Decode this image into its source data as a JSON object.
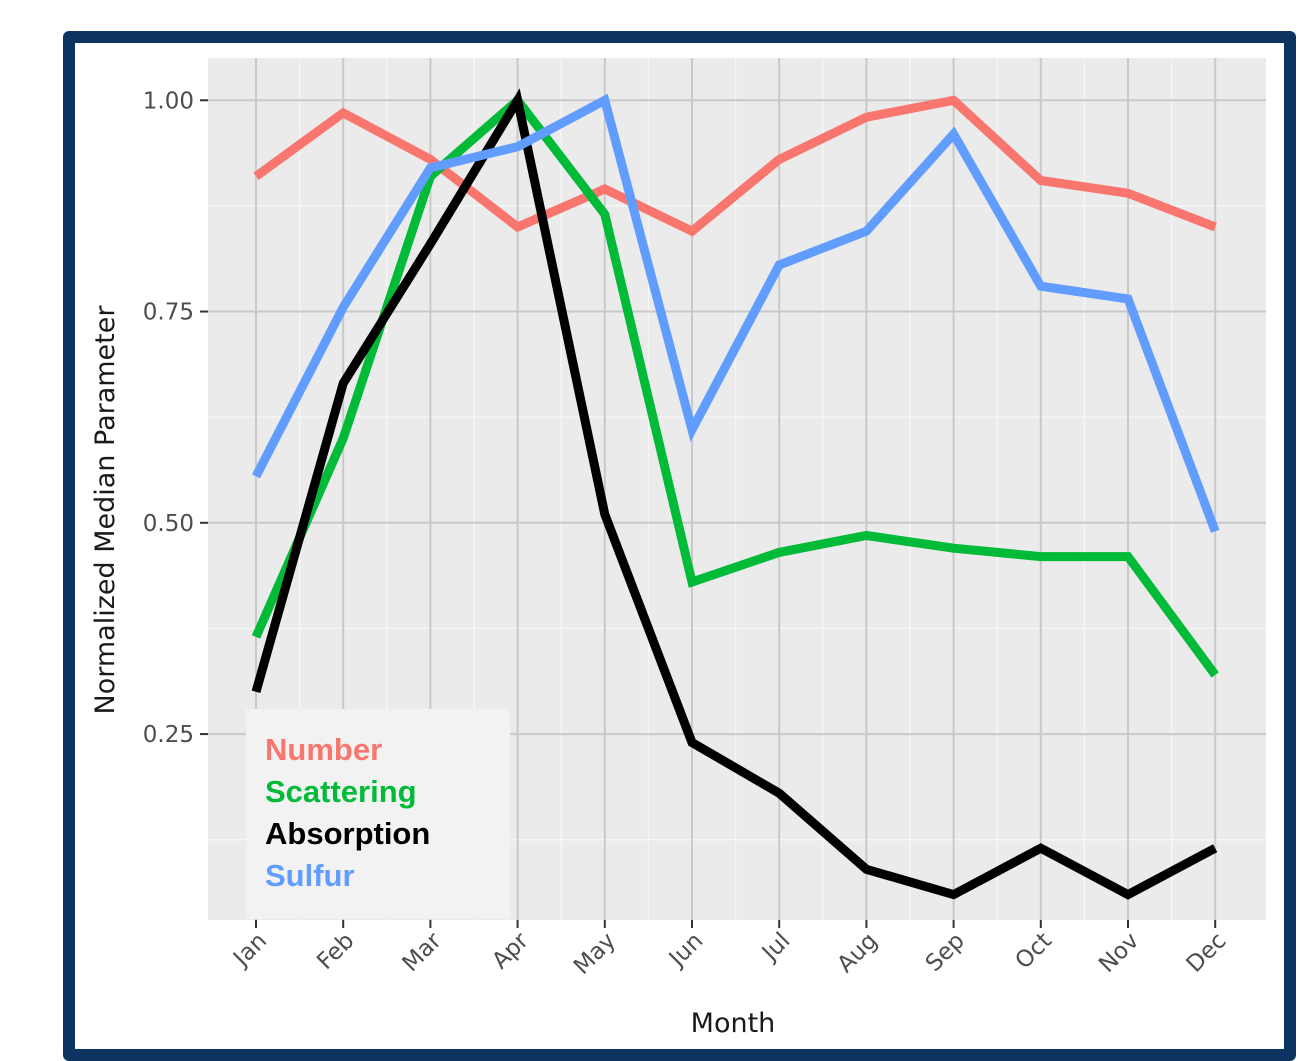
{
  "chart_data": {
    "type": "line",
    "xlabel": "Month",
    "ylabel": "Normalized Median Parameter",
    "categories": [
      "Jan",
      "Feb",
      "Mar",
      "Apr",
      "May",
      "Jun",
      "Jul",
      "Aug",
      "Sep",
      "Oct",
      "Nov",
      "Dec"
    ],
    "ylim": [
      0.03,
      1.05
    ],
    "yticks": [
      0.25,
      0.5,
      0.75,
      1.0
    ],
    "ytick_labels": [
      "0.25",
      "0.50",
      "0.75",
      "1.00"
    ],
    "grid": true,
    "legend_position": "bottom-left",
    "series": [
      {
        "name": "Number",
        "color": "#f8766d",
        "values": [
          0.91,
          0.985,
          0.93,
          0.85,
          0.895,
          0.845,
          0.93,
          0.98,
          1.0,
          0.905,
          0.89,
          0.85
        ]
      },
      {
        "name": "Scattering",
        "color": "#00ba38",
        "values": [
          0.365,
          0.6,
          0.91,
          1.0,
          0.865,
          0.43,
          0.465,
          0.485,
          0.47,
          0.46,
          0.46,
          0.32
        ]
      },
      {
        "name": "Absorption",
        "color": "#000000",
        "values": [
          0.3,
          0.665,
          0.83,
          1.0,
          0.51,
          0.24,
          0.18,
          0.09,
          0.06,
          0.115,
          0.06,
          0.115
        ]
      },
      {
        "name": "Sulfur",
        "color": "#619cff",
        "values": [
          0.555,
          0.755,
          0.92,
          0.945,
          1.0,
          0.61,
          0.805,
          0.845,
          0.96,
          0.78,
          0.765,
          0.49
        ]
      }
    ]
  }
}
